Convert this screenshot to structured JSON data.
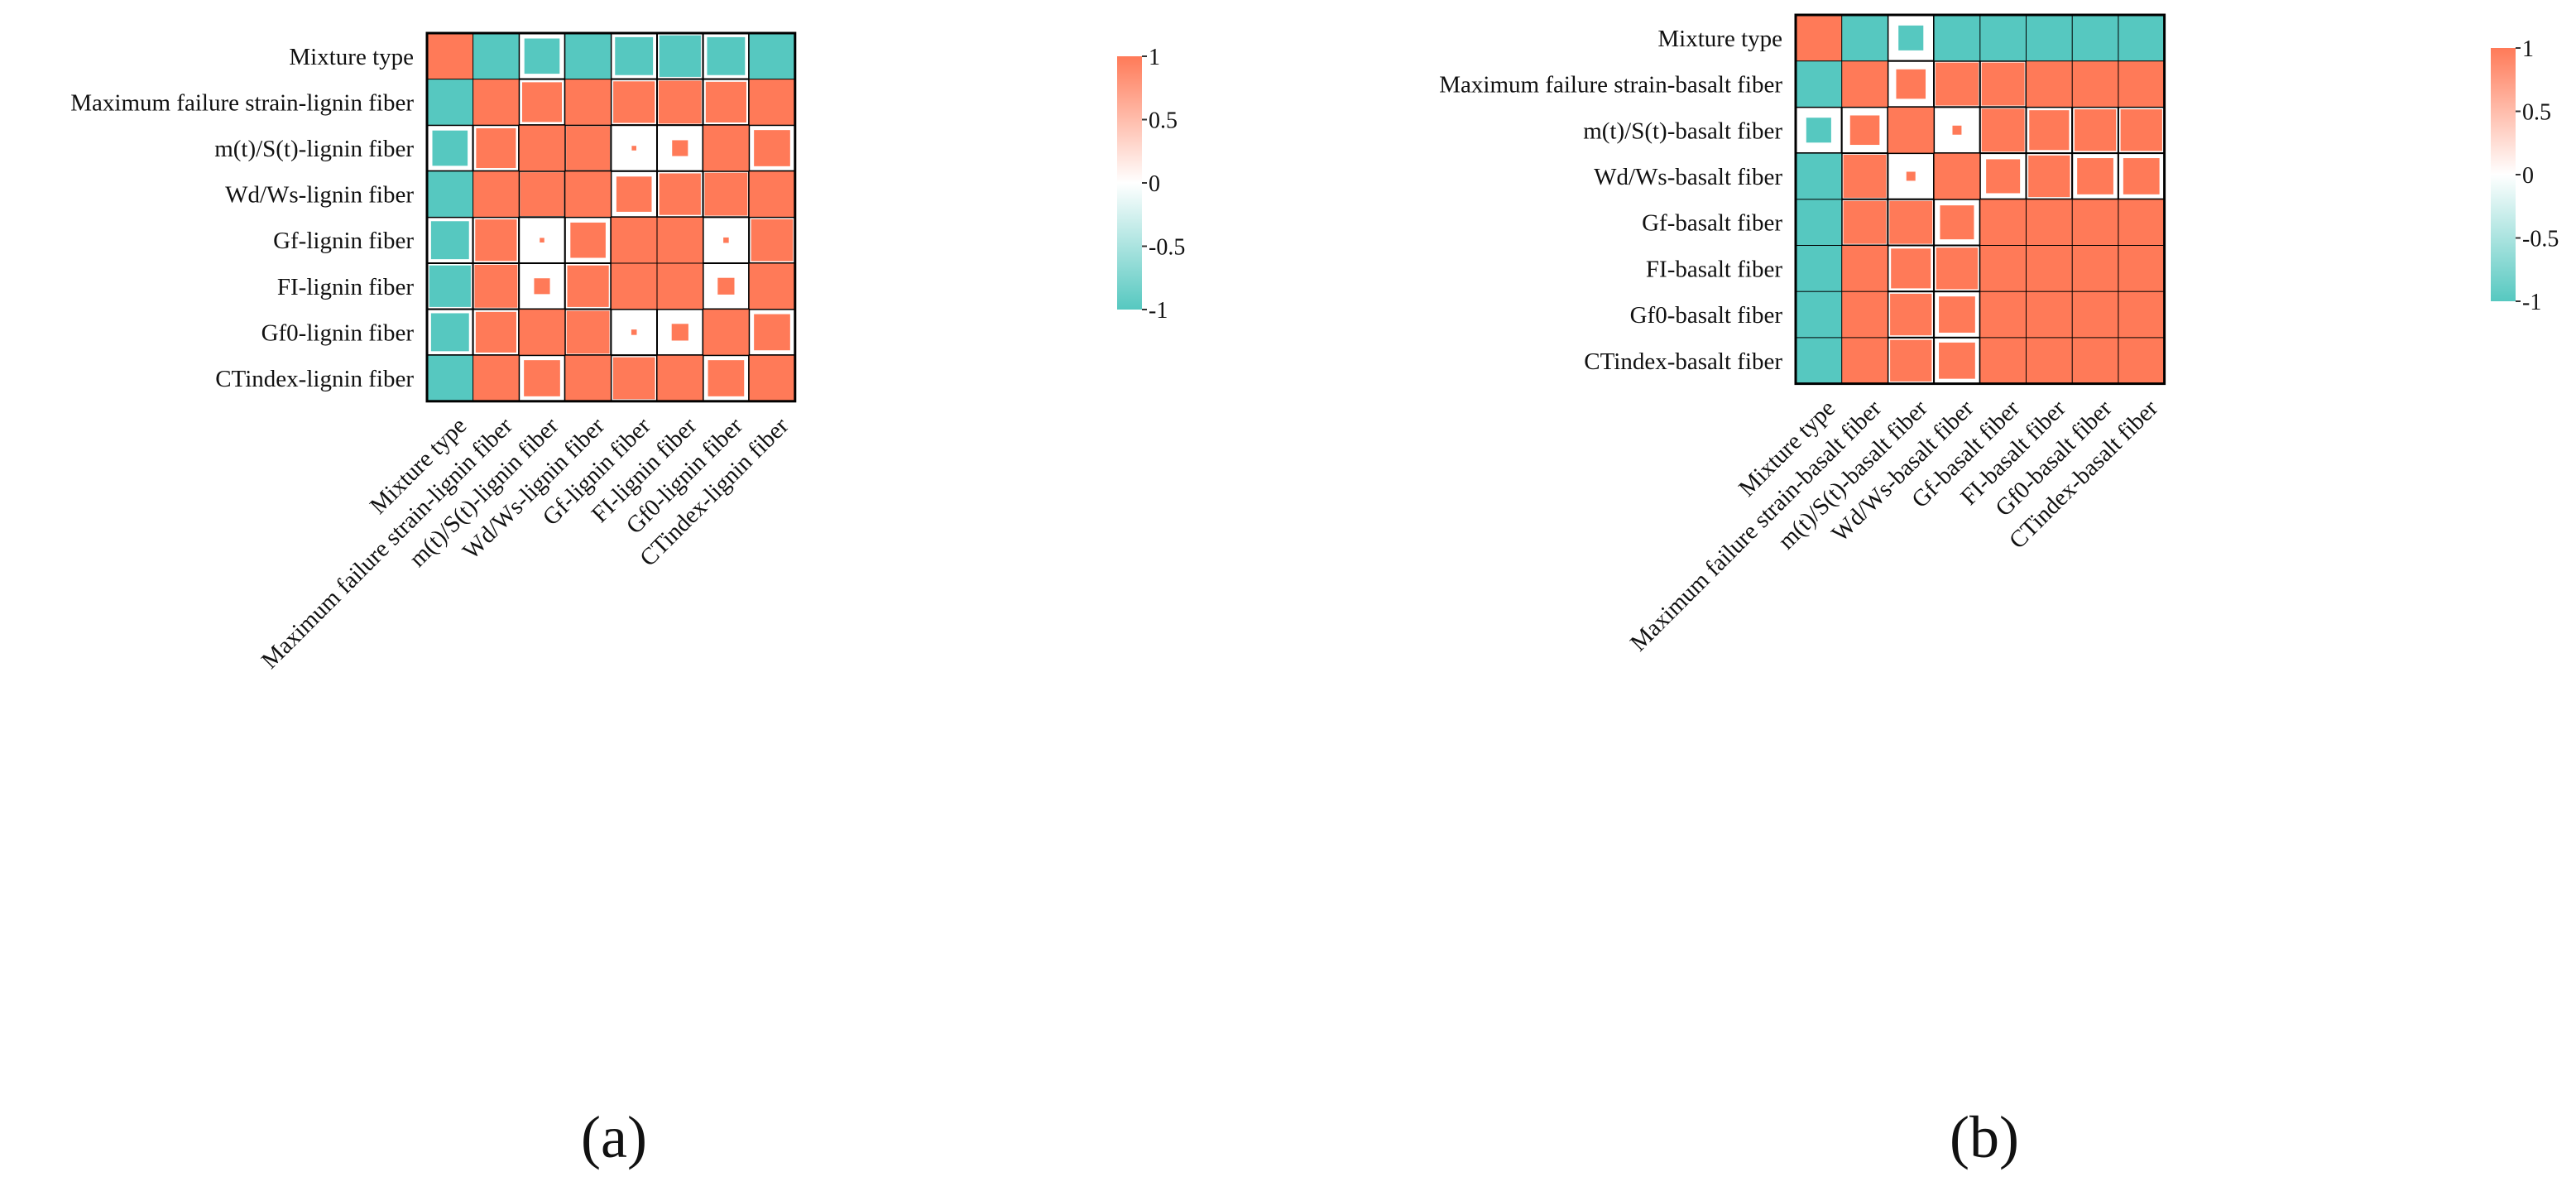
{
  "figure": {
    "panel_a_caption": "(a)",
    "panel_b_caption": "(b)"
  },
  "colors": {
    "positive": "#FF7A58",
    "negative": "#56C8C0",
    "neutral": "#FFFFFF",
    "grid": "#000000"
  },
  "chart_data": [
    {
      "type": "heatmap",
      "title": "",
      "panel": "(a)",
      "variables": [
        "Mixture type",
        "Maximum failure strain-lignin fiber",
        "m(t)/S(t)-lignin fiber",
        "Wd/Ws-lignin fiber",
        "Gf-lignin fiber",
        "FI-lignin fiber",
        "Gf0-lignin fiber",
        "CTindex-lignin fiber"
      ],
      "matrix": [
        [
          1.0,
          -1.0,
          -0.78,
          -1.0,
          -0.84,
          -0.92,
          -0.84,
          -1.0
        ],
        [
          -1.0,
          1.0,
          0.88,
          1.0,
          0.92,
          0.95,
          0.9,
          1.0
        ],
        [
          -0.78,
          0.88,
          1.0,
          0.97,
          0.1,
          0.35,
          1.0,
          0.8
        ],
        [
          -1.0,
          1.0,
          0.97,
          1.0,
          0.78,
          0.92,
          0.95,
          1.0
        ],
        [
          -0.84,
          0.92,
          0.1,
          0.78,
          1.0,
          1.0,
          0.12,
          0.93
        ],
        [
          -0.92,
          0.95,
          0.35,
          0.92,
          1.0,
          1.0,
          0.37,
          1.0
        ],
        [
          -0.84,
          0.9,
          1.0,
          0.95,
          0.12,
          0.37,
          1.0,
          0.8
        ],
        [
          -1.0,
          1.0,
          0.8,
          1.0,
          0.93,
          1.0,
          0.8,
          1.0
        ]
      ],
      "shape_note": "square size proportional to |r|",
      "colorbar": {
        "ticks": [
          "1",
          "0.5",
          "0",
          "-0.5",
          "-1"
        ],
        "range": [
          -1,
          1
        ]
      }
    },
    {
      "type": "heatmap",
      "title": "",
      "panel": "(b)",
      "variables": [
        "Mixture type",
        "Maximum failure strain-basalt fiber",
        "m(t)/S(t)-basalt fiber",
        "Wd/Ws-basalt fiber",
        "Gf-basalt fiber",
        "FI-basalt fiber",
        "Gf0-basalt fiber",
        "CTindex-basalt fiber"
      ],
      "matrix": [
        [
          1.0,
          -1.0,
          -0.55,
          -1.0,
          -1.0,
          -1.0,
          -1.0,
          -1.0
        ],
        [
          -1.0,
          1.0,
          0.65,
          0.95,
          0.95,
          1.0,
          1.0,
          1.0
        ],
        [
          -0.55,
          0.65,
          1.0,
          0.2,
          0.95,
          0.88,
          0.92,
          0.92
        ],
        [
          -1.0,
          0.95,
          0.2,
          1.0,
          0.75,
          0.92,
          0.8,
          0.8
        ],
        [
          -1.0,
          0.95,
          0.95,
          0.75,
          1.0,
          1.0,
          1.0,
          1.0
        ],
        [
          -1.0,
          1.0,
          0.88,
          0.92,
          1.0,
          1.0,
          1.0,
          1.0
        ],
        [
          -1.0,
          1.0,
          0.92,
          0.8,
          1.0,
          1.0,
          1.0,
          1.0
        ],
        [
          -1.0,
          1.0,
          0.92,
          0.8,
          1.0,
          1.0,
          1.0,
          1.0
        ]
      ],
      "shape_note": "square size proportional to |r|",
      "colorbar": {
        "ticks": [
          "1",
          "0.5",
          "0",
          "-0.5",
          "-1"
        ],
        "range": [
          -1,
          1
        ]
      }
    }
  ]
}
